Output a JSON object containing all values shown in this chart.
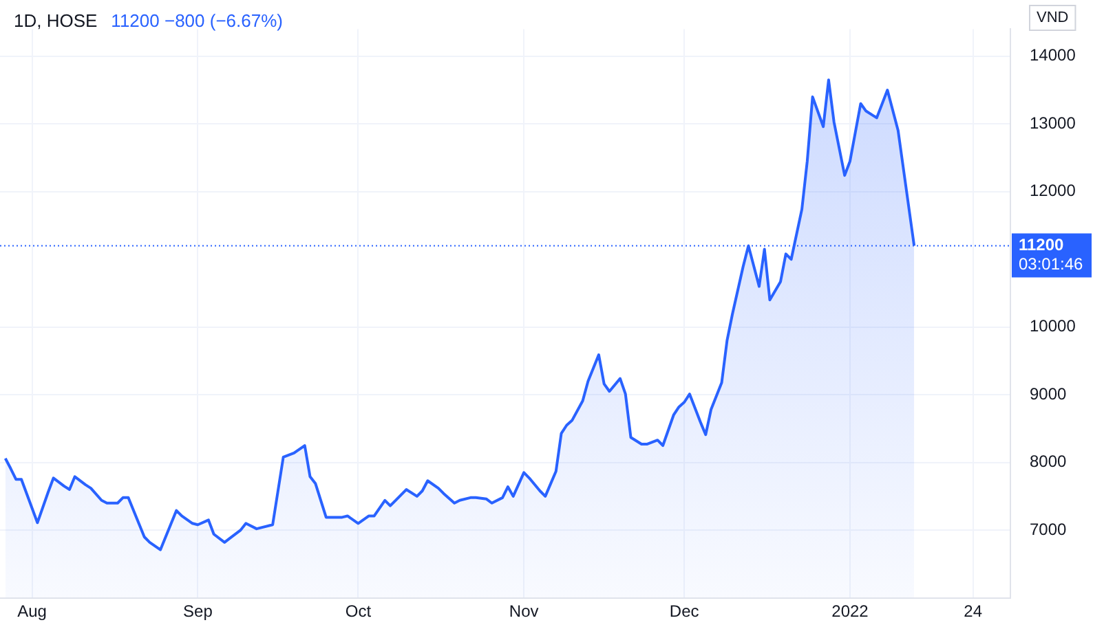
{
  "chart_data": {
    "type": "area",
    "title": "1D, HOSE",
    "ylabel": "VND",
    "annotations": [
      "11200 −800 (−6.67%)",
      "03:01:46"
    ],
    "x": [
      "2021-07-27",
      "2021-07-28",
      "2021-07-29",
      "2021-07-30",
      "2021-08-02",
      "2021-08-04",
      "2021-08-05",
      "2021-08-07",
      "2021-08-08",
      "2021-08-09",
      "2021-08-11",
      "2021-08-12",
      "2021-08-14",
      "2021-08-15",
      "2021-08-17",
      "2021-08-18",
      "2021-08-19",
      "2021-08-22",
      "2021-08-23",
      "2021-08-25",
      "2021-08-28",
      "2021-08-29",
      "2021-08-31",
      "2021-09-01",
      "2021-09-03",
      "2021-09-04",
      "2021-09-06",
      "2021-09-07",
      "2021-09-09",
      "2021-09-10",
      "2021-09-12",
      "2021-09-15",
      "2021-09-17",
      "2021-09-19",
      "2021-09-21",
      "2021-09-22",
      "2021-09-23",
      "2021-09-25",
      "2021-09-28",
      "2021-09-29",
      "2021-10-01",
      "2021-10-03",
      "2021-10-04",
      "2021-10-06",
      "2021-10-07",
      "2021-10-08",
      "2021-10-10",
      "2021-10-12",
      "2021-10-13",
      "2021-10-14",
      "2021-10-16",
      "2021-10-17",
      "2021-10-19",
      "2021-10-20",
      "2021-10-22",
      "2021-10-23",
      "2021-10-25",
      "2021-10-26",
      "2021-10-28",
      "2021-10-29",
      "2021-10-30",
      "2021-11-01",
      "2021-11-02",
      "2021-11-04",
      "2021-11-05",
      "2021-11-07",
      "2021-11-08",
      "2021-11-09",
      "2021-11-10",
      "2021-11-12",
      "2021-11-13",
      "2021-11-15",
      "2021-11-16",
      "2021-11-17",
      "2021-11-19",
      "2021-11-20",
      "2021-11-21",
      "2021-11-23",
      "2021-11-24",
      "2021-11-26",
      "2021-11-27",
      "2021-11-29",
      "2021-11-30",
      "2021-12-01",
      "2021-12-02",
      "2021-12-04",
      "2021-12-05",
      "2021-12-06",
      "2021-12-08",
      "2021-12-09",
      "2021-12-10",
      "2021-12-12",
      "2021-12-13",
      "2021-12-15",
      "2021-12-16",
      "2021-12-17",
      "2021-12-19",
      "2021-12-20",
      "2021-12-21",
      "2021-12-23",
      "2021-12-24",
      "2021-12-25",
      "2021-12-27",
      "2021-12-28",
      "2021-12-29",
      "2021-12-31",
      "2022-01-01",
      "2022-01-03",
      "2022-01-04",
      "2022-01-06",
      "2022-01-08",
      "2022-01-10",
      "2022-01-13"
    ],
    "series": [
      {
        "color": "#2962ff",
        "values": [
          8060,
          7910,
          7750,
          7750,
          7110,
          7560,
          7770,
          7650,
          7600,
          7790,
          7670,
          7620,
          7440,
          7400,
          7400,
          7480,
          7480,
          6900,
          6820,
          6710,
          7290,
          7210,
          7100,
          7080,
          7150,
          6940,
          6820,
          6880,
          7000,
          7100,
          7020,
          7080,
          8080,
          8140,
          8250,
          7790,
          7690,
          7190,
          7190,
          7210,
          7100,
          7210,
          7210,
          7440,
          7360,
          7440,
          7600,
          7500,
          7580,
          7730,
          7620,
          7540,
          7400,
          7440,
          7480,
          7480,
          7460,
          7400,
          7480,
          7640,
          7500,
          7850,
          7770,
          7580,
          7500,
          7870,
          8430,
          8550,
          8620,
          8910,
          9200,
          9590,
          9160,
          9050,
          9240,
          9010,
          8370,
          8270,
          8270,
          8330,
          8250,
          8700,
          8820,
          8890,
          9010,
          8600,
          8410,
          8780,
          9180,
          9800,
          10190,
          10890,
          11200,
          10600,
          11150,
          10400,
          10670,
          11080,
          11000,
          11740,
          12450,
          13400,
          12960,
          13650,
          13030,
          12240,
          12450,
          13300,
          13190,
          13090,
          13500,
          12900,
          11200
        ]
      }
    ],
    "xlim": [
      "2021-07-26",
      "2022-01-31"
    ],
    "xticks": [
      {
        "value": "2021-08-01",
        "label": "Aug"
      },
      {
        "value": "2021-09-01",
        "label": "Sep"
      },
      {
        "value": "2021-10-01",
        "label": "Oct"
      },
      {
        "value": "2021-11-01",
        "label": "Nov"
      },
      {
        "value": "2021-12-01",
        "label": "Dec"
      },
      {
        "value": "2022-01-01",
        "label": "2022"
      },
      {
        "value": "2022-01-24",
        "label": "24"
      }
    ],
    "ylim": [
      6000,
      14400
    ],
    "yticks": [
      7000,
      8000,
      9000,
      10000,
      12000,
      13000,
      14000
    ],
    "ref_lines": [
      {
        "axis": "y",
        "value": 11200,
        "label": "11200",
        "color": "#2962ff",
        "line_style": "dotted"
      }
    ],
    "grid": true,
    "legend": false
  }
}
